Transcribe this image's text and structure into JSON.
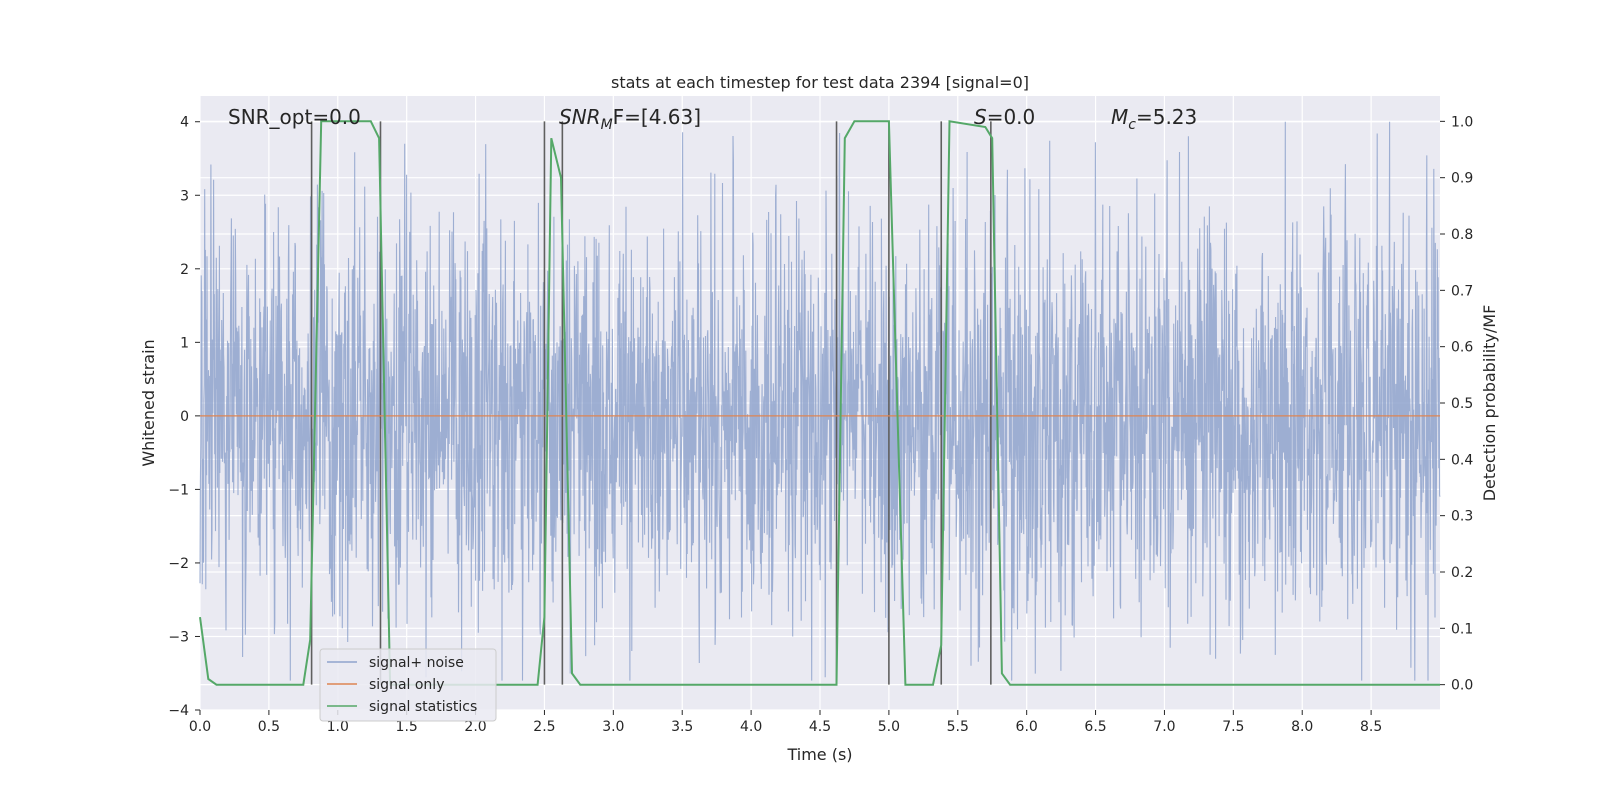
{
  "chart_data": {
    "type": "line",
    "title": "stats at each timestep for test data 2394 [signal=0]",
    "xlabel": "Time (s)",
    "ylabel": "Whitened strain",
    "y2label": "Detection probability/MF",
    "xlim": [
      0.0,
      9.0
    ],
    "ylim": [
      -4.0,
      4.35
    ],
    "y2lim": [
      -0.045,
      1.045
    ],
    "x_ticks": [
      "0.0",
      "0.5",
      "1.0",
      "1.5",
      "2.0",
      "2.5",
      "3.0",
      "3.5",
      "4.0",
      "4.5",
      "5.0",
      "5.5",
      "6.0",
      "6.5",
      "7.0",
      "7.5",
      "8.0",
      "8.5"
    ],
    "y_ticks": [
      "4",
      "3",
      "2",
      "1",
      "0",
      "−1",
      "−2",
      "−3",
      "−4"
    ],
    "y2_ticks": [
      "1.0",
      "0.9",
      "0.8",
      "0.7",
      "0.6",
      "0.5",
      "0.4",
      "0.3",
      "0.2",
      "0.1",
      "0.0"
    ],
    "grid": true,
    "legend_position": "lower-left",
    "annotations": {
      "snr_opt": "SNR_opt=0.0",
      "snr_mf_main": "SNR",
      "snr_mf_sub": "M",
      "snr_mf_rest": "F=[4.63]",
      "s_sym": "S",
      "s_rest": "=0.0",
      "mc_main": "M",
      "mc_sub": "c",
      "mc_rest": "=5.23"
    },
    "series": [
      {
        "name": "signal+ noise",
        "color": "#8fa3cc",
        "style": "noise",
        "sample_rate_hz": 2048,
        "amplitude_envelope": {
          "typical": 1.8,
          "max": 4.0,
          "min": -3.6
        }
      },
      {
        "name": "signal only",
        "color": "#dd8452",
        "x": [
          0.0,
          9.0
        ],
        "y": [
          0.0,
          0.0
        ]
      },
      {
        "name": "signal statistics",
        "color": "#55a868",
        "axis": "right",
        "x": [
          0.0,
          0.06,
          0.12,
          0.75,
          0.8,
          0.88,
          1.24,
          1.3,
          1.38,
          2.45,
          2.5,
          2.55,
          2.62,
          2.7,
          2.76,
          4.62,
          4.68,
          4.75,
          5.0,
          5.12,
          5.32,
          5.38,
          5.44,
          5.7,
          5.75,
          5.82,
          5.88,
          9.0
        ],
        "y": [
          0.12,
          0.01,
          0.0,
          0.0,
          0.08,
          1.0,
          1.0,
          0.97,
          0.0,
          0.0,
          0.12,
          0.97,
          0.9,
          0.02,
          0.0,
          0.0,
          0.97,
          1.0,
          1.0,
          0.0,
          0.0,
          0.07,
          1.0,
          0.99,
          0.97,
          0.02,
          0.0,
          0.0
        ]
      }
    ],
    "vertical_markers": {
      "color": "#5f5f5f",
      "x": [
        0.81,
        1.31,
        2.5,
        2.63,
        4.62,
        5.0,
        5.38,
        5.74
      ]
    }
  }
}
